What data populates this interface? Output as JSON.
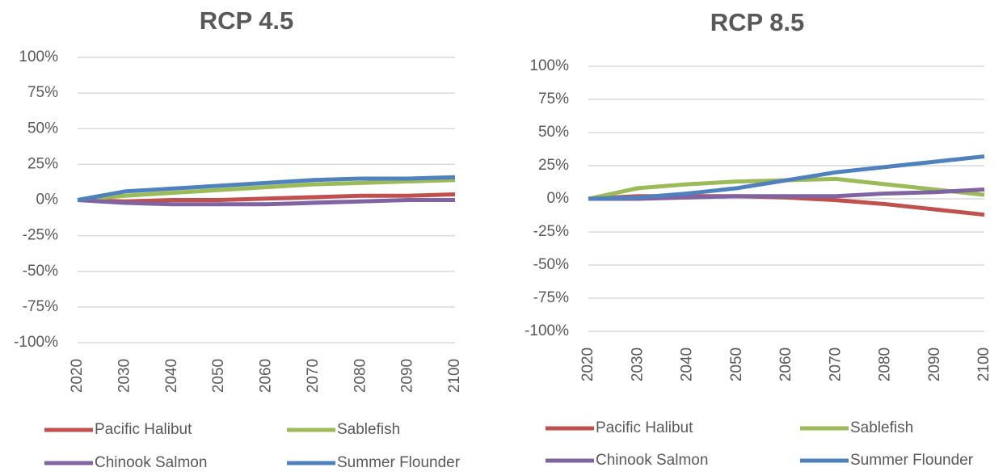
{
  "chart_data": [
    {
      "type": "line",
      "title": "RCP 4.5",
      "categories": [
        "2020",
        "2030",
        "2040",
        "2050",
        "2060",
        "2070",
        "2080",
        "2090",
        "2100"
      ],
      "ylim": [
        -100,
        100
      ],
      "yticks": [
        {
          "value": -100,
          "label": "-100%"
        },
        {
          "value": -75,
          "label": "-75%"
        },
        {
          "value": -50,
          "label": "-50%"
        },
        {
          "value": -25,
          "label": "-25%"
        },
        {
          "value": 0,
          "label": "0%"
        },
        {
          "value": 25,
          "label": "25%"
        },
        {
          "value": 50,
          "label": "50%"
        },
        {
          "value": 75,
          "label": "75%"
        },
        {
          "value": 100,
          "label": "100%"
        }
      ],
      "grid": true,
      "series": [
        {
          "name": "Pacific Halibut",
          "color": "#c0504d",
          "values": [
            0,
            -1,
            0,
            0,
            1,
            2,
            3,
            3,
            4
          ]
        },
        {
          "name": "Sablefish",
          "color": "#9bbb59",
          "values": [
            0,
            3,
            5,
            7,
            9,
            11,
            12,
            13,
            14
          ]
        },
        {
          "name": "Chinook Salmon",
          "color": "#8064a2",
          "values": [
            0,
            -2,
            -3,
            -3,
            -3,
            -2,
            -1,
            0,
            0
          ]
        },
        {
          "name": "Summer Flounder",
          "color": "#4f81bd",
          "values": [
            0,
            6,
            8,
            10,
            12,
            14,
            15,
            15,
            16
          ]
        }
      ]
    },
    {
      "type": "line",
      "title": "RCP 8.5",
      "categories": [
        "2020",
        "2030",
        "2040",
        "2050",
        "2060",
        "2070",
        "2080",
        "2090",
        "2100"
      ],
      "ylim": [
        -100,
        100
      ],
      "yticks": [
        {
          "value": -100,
          "label": "-100%"
        },
        {
          "value": -75,
          "label": "-75%"
        },
        {
          "value": -50,
          "label": "-50%"
        },
        {
          "value": -25,
          "label": "-25%"
        },
        {
          "value": 0,
          "label": "0%"
        },
        {
          "value": 25,
          "label": "25%"
        },
        {
          "value": 50,
          "label": "50%"
        },
        {
          "value": 75,
          "label": "75%"
        },
        {
          "value": 100,
          "label": "100%"
        }
      ],
      "grid": true,
      "series": [
        {
          "name": "Pacific Halibut",
          "color": "#c0504d",
          "values": [
            0,
            2,
            2,
            2,
            1,
            -1,
            -4,
            -8,
            -12
          ]
        },
        {
          "name": "Sablefish",
          "color": "#9bbb59",
          "values": [
            0,
            8,
            11,
            13,
            14,
            15,
            11,
            7,
            3
          ]
        },
        {
          "name": "Chinook Salmon",
          "color": "#8064a2",
          "values": [
            0,
            0,
            1,
            2,
            2,
            2,
            4,
            5,
            7
          ]
        },
        {
          "name": "Summer Flounder",
          "color": "#4f81bd",
          "values": [
            0,
            1,
            4,
            8,
            14,
            20,
            24,
            28,
            32
          ]
        }
      ]
    }
  ]
}
